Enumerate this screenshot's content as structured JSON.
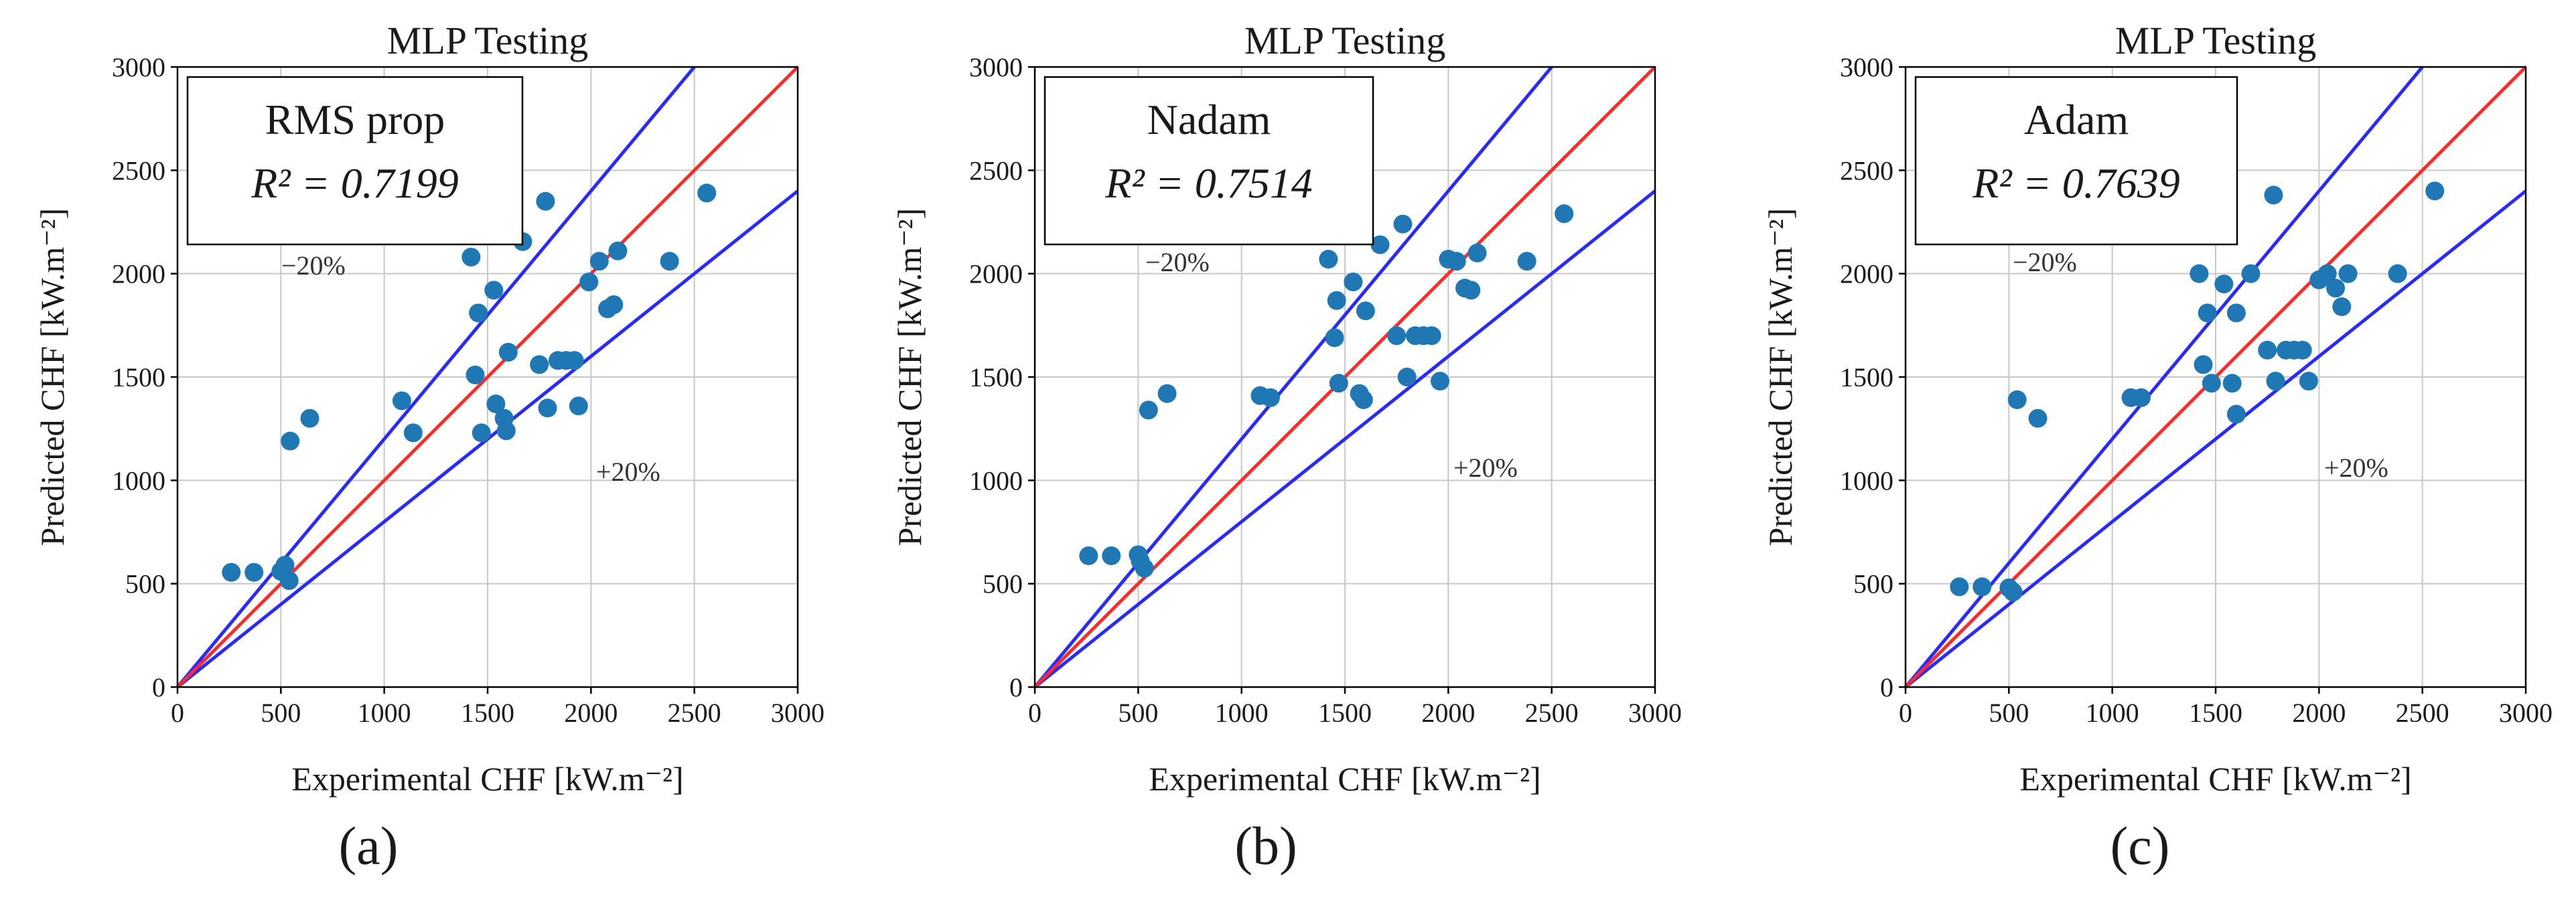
{
  "colors": {
    "points": "#1f77b4",
    "identity": "#ff2a2a",
    "bounds": "#2a2aff",
    "grid": "#c8c8c8",
    "axes": "#000000"
  },
  "chart_data": [
    {
      "type": "scatter",
      "title": "MLP Testing",
      "xlabel": "Experimental CHF [kW.m⁻²]",
      "ylabel": "Predicted CHF [kW.m⁻²]",
      "xlim": [
        0,
        3000
      ],
      "ylim": [
        0,
        3000
      ],
      "xticks": [
        0,
        500,
        1000,
        1500,
        2000,
        2500,
        3000
      ],
      "yticks": [
        0,
        500,
        1000,
        1500,
        2000,
        2500,
        3000
      ],
      "grid": true,
      "reference_lines": [
        "y = 1.2x",
        "y = x",
        "y = 0.8x"
      ],
      "model_name": "RMS prop",
      "r2_text": "R² = 0.7199",
      "minus20_label": "−20%",
      "plus20_label": "+20%",
      "caption": "(a)",
      "points": [
        [
          260,
          555
        ],
        [
          370,
          555
        ],
        [
          500,
          560
        ],
        [
          520,
          590
        ],
        [
          540,
          515
        ],
        [
          545,
          1190
        ],
        [
          640,
          1300
        ],
        [
          1085,
          1385
        ],
        [
          1140,
          1230
        ],
        [
          1420,
          2080
        ],
        [
          1440,
          1510
        ],
        [
          1455,
          1810
        ],
        [
          1470,
          1230
        ],
        [
          1530,
          1920
        ],
        [
          1540,
          1370
        ],
        [
          1580,
          1300
        ],
        [
          1590,
          1240
        ],
        [
          1600,
          1620
        ],
        [
          1670,
          2155
        ],
        [
          1750,
          1560
        ],
        [
          1780,
          2350
        ],
        [
          1790,
          1350
        ],
        [
          1840,
          1580
        ],
        [
          1880,
          1580
        ],
        [
          1920,
          1580
        ],
        [
          1940,
          1360
        ],
        [
          1990,
          1960
        ],
        [
          2040,
          2060
        ],
        [
          2080,
          1830
        ],
        [
          2110,
          1850
        ],
        [
          2130,
          2110
        ],
        [
          2380,
          2060
        ],
        [
          2560,
          2390
        ]
      ]
    },
    {
      "type": "scatter",
      "title": "MLP Testing",
      "xlabel": "Experimental CHF [kW.m⁻²]",
      "ylabel": "Predicted CHF [kW.m⁻²]",
      "xlim": [
        0,
        3000
      ],
      "ylim": [
        0,
        3000
      ],
      "xticks": [
        0,
        500,
        1000,
        1500,
        2000,
        2500,
        3000
      ],
      "yticks": [
        0,
        500,
        1000,
        1500,
        2000,
        2500,
        3000
      ],
      "grid": true,
      "reference_lines": [
        "y = 1.2x",
        "y = x",
        "y = 0.8x"
      ],
      "model_name": "Nadam",
      "r2_text": "R² = 0.7514",
      "minus20_label": "−20%",
      "plus20_label": "+20%",
      "caption": "(b)",
      "points": [
        [
          260,
          635
        ],
        [
          370,
          635
        ],
        [
          500,
          640
        ],
        [
          510,
          610
        ],
        [
          530,
          575
        ],
        [
          550,
          1340
        ],
        [
          640,
          1420
        ],
        [
          1090,
          1410
        ],
        [
          1140,
          1400
        ],
        [
          1420,
          2070
        ],
        [
          1450,
          1690
        ],
        [
          1460,
          1870
        ],
        [
          1470,
          1470
        ],
        [
          1540,
          1960
        ],
        [
          1570,
          1420
        ],
        [
          1590,
          1390
        ],
        [
          1600,
          1820
        ],
        [
          1670,
          2140
        ],
        [
          1750,
          1700
        ],
        [
          1780,
          2240
        ],
        [
          1800,
          1500
        ],
        [
          1840,
          1700
        ],
        [
          1880,
          1700
        ],
        [
          1920,
          1700
        ],
        [
          1960,
          1480
        ],
        [
          2000,
          2070
        ],
        [
          2040,
          2060
        ],
        [
          2080,
          1930
        ],
        [
          2110,
          1920
        ],
        [
          2140,
          2100
        ],
        [
          2380,
          2060
        ],
        [
          2560,
          2290
        ]
      ]
    },
    {
      "type": "scatter",
      "title": "MLP Testing",
      "xlabel": "Experimental CHF [kW.m⁻²]",
      "ylabel": "Predicted CHF [kW.m⁻²]",
      "xlim": [
        0,
        3000
      ],
      "ylim": [
        0,
        3000
      ],
      "xticks": [
        0,
        500,
        1000,
        1500,
        2000,
        2500,
        3000
      ],
      "yticks": [
        0,
        500,
        1000,
        1500,
        2000,
        2500,
        3000
      ],
      "grid": true,
      "reference_lines": [
        "y = 1.2x",
        "y = x",
        "y = 0.8x"
      ],
      "model_name": "Adam",
      "r2_text": "R² = 0.7639",
      "minus20_label": "−20%",
      "plus20_label": "+20%",
      "caption": "(c)",
      "points": [
        [
          260,
          485
        ],
        [
          370,
          485
        ],
        [
          500,
          480
        ],
        [
          520,
          460
        ],
        [
          540,
          1390
        ],
        [
          640,
          1300
        ],
        [
          1090,
          1400
        ],
        [
          1140,
          1400
        ],
        [
          1420,
          2000
        ],
        [
          1440,
          1560
        ],
        [
          1460,
          1810
        ],
        [
          1480,
          1470
        ],
        [
          1540,
          1950
        ],
        [
          1580,
          1470
        ],
        [
          1600,
          1320
        ],
        [
          1600,
          1810
        ],
        [
          1670,
          2000
        ],
        [
          1750,
          1630
        ],
        [
          1780,
          2380
        ],
        [
          1790,
          1480
        ],
        [
          1840,
          1630
        ],
        [
          1880,
          1630
        ],
        [
          1920,
          1630
        ],
        [
          1950,
          1480
        ],
        [
          2000,
          1970
        ],
        [
          2040,
          2000
        ],
        [
          2080,
          1930
        ],
        [
          2110,
          1840
        ],
        [
          2140,
          2000
        ],
        [
          2380,
          2000
        ],
        [
          2560,
          2400
        ]
      ]
    }
  ]
}
